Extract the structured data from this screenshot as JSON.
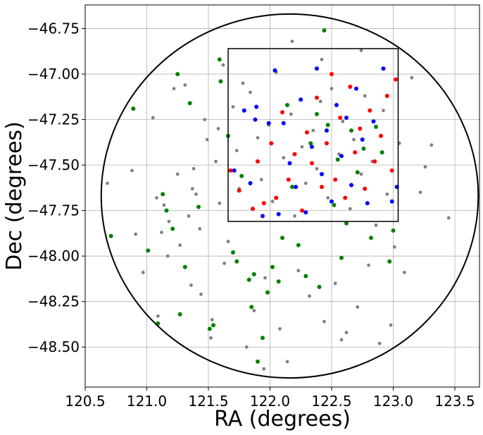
{
  "chart_data": {
    "type": "scatter",
    "xlabel": "RA (degrees)",
    "ylabel": "Dec (degrees)",
    "xlim": [
      120.5,
      123.7
    ],
    "ylim": [
      -48.72,
      -46.62
    ],
    "grid": true,
    "xticks": [
      120.5,
      121.0,
      121.5,
      122.0,
      122.5,
      123.0,
      123.5
    ],
    "xtick_labels": [
      "120.5",
      "121.0",
      "121.5",
      "122.0",
      "122.5",
      "123.0",
      "123.5"
    ],
    "yticks": [
      -46.75,
      -47.0,
      -47.25,
      -47.5,
      -47.75,
      -48.0,
      -48.25,
      -48.5
    ],
    "ytick_labels": [
      "−46.75",
      "−47.00",
      "−47.25",
      "−47.50",
      "−47.75",
      "−48.00",
      "−48.25",
      "−48.50"
    ],
    "circle": {
      "center_ra": 122.16,
      "center_dec": -47.67,
      "radius_ra": 1.53,
      "radius_dec": 1.0
    },
    "box": {
      "ra": [
        121.66,
        123.04
      ],
      "dec": [
        -47.81,
        -46.86
      ]
    },
    "series": [
      {
        "color": "#808080",
        "points": [
          [
            120.68,
            -47.6
          ],
          [
            120.88,
            -47.53
          ],
          [
            120.91,
            -47.88
          ],
          [
            120.97,
            -48.09
          ],
          [
            121.05,
            -47.24
          ],
          [
            121.08,
            -47.68
          ],
          [
            121.09,
            -48.33
          ],
          [
            121.12,
            -47.87
          ],
          [
            121.14,
            -47.72
          ],
          [
            121.17,
            -48.0
          ],
          [
            121.18,
            -47.81
          ],
          [
            121.22,
            -47.08
          ],
          [
            121.25,
            -47.55
          ],
          [
            121.27,
            -47.94
          ],
          [
            121.31,
            -47.06
          ],
          [
            121.34,
            -47.78
          ],
          [
            121.36,
            -48.16
          ],
          [
            121.38,
            -47.52
          ],
          [
            121.4,
            -47.66
          ],
          [
            121.43,
            -47.85
          ],
          [
            121.44,
            -48.21
          ],
          [
            121.47,
            -47.25
          ],
          [
            121.49,
            -47.36
          ],
          [
            121.52,
            -48.45
          ],
          [
            121.56,
            -47.48
          ],
          [
            121.59,
            -47.71
          ],
          [
            121.63,
            -48.04
          ],
          [
            121.66,
            -47.92
          ],
          [
            121.7,
            -47.18
          ],
          [
            121.73,
            -47.42
          ],
          [
            121.75,
            -47.63
          ],
          [
            121.78,
            -47.05
          ],
          [
            121.81,
            -48.5
          ],
          [
            121.84,
            -47.1
          ],
          [
            121.87,
            -48.3
          ],
          [
            121.9,
            -47.35
          ],
          [
            121.93,
            -47.58
          ],
          [
            121.96,
            -48.12
          ],
          [
            121.99,
            -47.28
          ],
          [
            122.02,
            -47.7
          ],
          [
            122.05,
            -46.99
          ],
          [
            122.08,
            -48.4
          ],
          [
            122.11,
            -47.46
          ],
          [
            122.14,
            -48.58
          ],
          [
            122.17,
            -47.22
          ],
          [
            122.2,
            -47.78
          ],
          [
            122.23,
            -48.08
          ],
          [
            122.26,
            -47.4
          ],
          [
            122.29,
            -47.6
          ],
          [
            122.32,
            -48.22
          ],
          [
            122.35,
            -47.31
          ],
          [
            122.38,
            -47.52
          ],
          [
            122.41,
            -47.15
          ],
          [
            122.44,
            -48.36
          ],
          [
            122.47,
            -47.68
          ],
          [
            122.5,
            -47.08
          ],
          [
            122.53,
            -48.15
          ],
          [
            122.56,
            -47.44
          ],
          [
            122.59,
            -47.26
          ],
          [
            122.62,
            -48.42
          ],
          [
            122.65,
            -47.74
          ],
          [
            122.68,
            -47.36
          ],
          [
            122.71,
            -48.28
          ],
          [
            122.74,
            -47.55
          ],
          [
            122.77,
            -47.12
          ],
          [
            122.8,
            -48.05
          ],
          [
            122.83,
            -47.48
          ],
          [
            122.86,
            -47.83
          ],
          [
            122.89,
            -48.48
          ],
          [
            122.92,
            -47.2
          ],
          [
            122.95,
            -47.66
          ],
          [
            122.98,
            -48.38
          ],
          [
            123.01,
            -47.95
          ],
          [
            123.05,
            -47.38
          ],
          [
            123.09,
            -48.09
          ],
          [
            123.15,
            -47.02
          ],
          [
            123.22,
            -47.65
          ],
          [
            123.26,
            -47.51
          ],
          [
            123.31,
            -47.39
          ],
          [
            123.45,
            -47.79
          ],
          [
            121.58,
            -47.3
          ],
          [
            121.62,
            -46.95
          ],
          [
            122.18,
            -46.82
          ],
          [
            122.42,
            -46.92
          ],
          [
            122.74,
            -46.87
          ],
          [
            121.37,
            -47.63
          ],
          [
            121.53,
            -48.35
          ],
          [
            121.95,
            -48.62
          ],
          [
            122.58,
            -48.46
          ]
        ]
      },
      {
        "color": "#008000",
        "points": [
          [
            120.71,
            -47.89
          ],
          [
            120.89,
            -47.19
          ],
          [
            121.01,
            -47.97
          ],
          [
            121.09,
            -48.37
          ],
          [
            121.13,
            -47.66
          ],
          [
            121.16,
            -47.75
          ],
          [
            121.21,
            -47.85
          ],
          [
            121.25,
            -47.0
          ],
          [
            121.27,
            -48.32
          ],
          [
            121.31,
            -48.06
          ],
          [
            121.35,
            -47.16
          ],
          [
            121.42,
            -47.73
          ],
          [
            121.51,
            -48.4
          ],
          [
            121.54,
            -48.38
          ],
          [
            121.59,
            -46.92
          ],
          [
            121.6,
            -47.04
          ],
          [
            121.66,
            -47.34
          ],
          [
            121.7,
            -47.98
          ],
          [
            121.73,
            -48.03
          ],
          [
            121.77,
            -47.56
          ],
          [
            121.83,
            -48.13
          ],
          [
            121.85,
            -48.28
          ],
          [
            121.87,
            -48.1
          ],
          [
            121.9,
            -48.58
          ],
          [
            121.94,
            -48.45
          ],
          [
            121.98,
            -48.2
          ],
          [
            122.02,
            -48.06
          ],
          [
            122.07,
            -48.14
          ],
          [
            122.1,
            -47.9
          ],
          [
            122.14,
            -47.17
          ],
          [
            122.18,
            -47.62
          ],
          [
            122.23,
            -47.94
          ],
          [
            122.29,
            -48.11
          ],
          [
            122.33,
            -47.38
          ],
          [
            122.38,
            -47.22
          ],
          [
            122.4,
            -48.17
          ],
          [
            122.44,
            -46.76
          ],
          [
            122.47,
            -47.28
          ],
          [
            122.52,
            -47.72
          ],
          [
            122.55,
            -47.47
          ],
          [
            122.58,
            -48.01
          ],
          [
            122.62,
            -47.82
          ],
          [
            122.66,
            -47.31
          ],
          [
            122.71,
            -47.54
          ],
          [
            122.76,
            -47.41
          ],
          [
            122.82,
            -47.9
          ],
          [
            122.86,
            -47.29
          ],
          [
            122.91,
            -47.43
          ],
          [
            122.97,
            -48.03
          ],
          [
            123.0,
            -47.86
          ]
        ]
      },
      {
        "color": "#ff0000",
        "points": [
          [
            121.68,
            -47.53
          ],
          [
            121.75,
            -47.64
          ],
          [
            121.86,
            -47.74
          ],
          [
            121.9,
            -47.48
          ],
          [
            121.95,
            -47.71
          ],
          [
            122.01,
            -47.38
          ],
          [
            122.05,
            -47.68
          ],
          [
            122.1,
            -47.21
          ],
          [
            122.15,
            -47.58
          ],
          [
            122.2,
            -47.44
          ],
          [
            122.26,
            -47.75
          ],
          [
            122.3,
            -47.32
          ],
          [
            122.34,
            -47.49
          ],
          [
            122.38,
            -47.13
          ],
          [
            122.42,
            -47.62
          ],
          [
            122.46,
            -47.38
          ],
          [
            122.5,
            -47.0
          ],
          [
            122.53,
            -47.58
          ],
          [
            122.57,
            -47.24
          ],
          [
            122.61,
            -47.68
          ],
          [
            122.65,
            -47.07
          ],
          [
            122.69,
            -47.43
          ],
          [
            122.73,
            -47.3
          ],
          [
            122.77,
            -47.63
          ],
          [
            122.81,
            -47.2
          ],
          [
            122.85,
            -47.48
          ],
          [
            122.9,
            -47.34
          ],
          [
            122.95,
            -47.12
          ],
          [
            122.99,
            -47.53
          ],
          [
            123.02,
            -47.03
          ]
        ]
      },
      {
        "color": "#0000ff",
        "points": [
          [
            121.71,
            -47.53
          ],
          [
            121.79,
            -47.2
          ],
          [
            121.84,
            -47.6
          ],
          [
            121.89,
            -47.18
          ],
          [
            121.94,
            -47.78
          ],
          [
            121.99,
            -47.27
          ],
          [
            122.04,
            -46.98
          ],
          [
            122.07,
            -47.77
          ],
          [
            122.11,
            -47.27
          ],
          [
            122.16,
            -47.49
          ],
          [
            122.21,
            -47.62
          ],
          [
            122.25,
            -47.14
          ],
          [
            122.29,
            -47.76
          ],
          [
            122.34,
            -47.4
          ],
          [
            122.38,
            -46.97
          ],
          [
            122.42,
            -47.55
          ],
          [
            122.46,
            -47.31
          ],
          [
            122.5,
            -47.7
          ],
          [
            122.54,
            -47.17
          ],
          [
            122.58,
            -47.45
          ],
          [
            122.62,
            -47.24
          ],
          [
            122.66,
            -47.61
          ],
          [
            122.7,
            -47.08
          ],
          [
            122.75,
            -47.36
          ],
          [
            122.79,
            -47.71
          ],
          [
            122.84,
            -47.26
          ],
          [
            122.92,
            -46.97
          ],
          [
            122.99,
            -47.7
          ],
          [
            123.03,
            -47.62
          ],
          [
            121.88,
            -47.25
          ]
        ]
      }
    ]
  }
}
